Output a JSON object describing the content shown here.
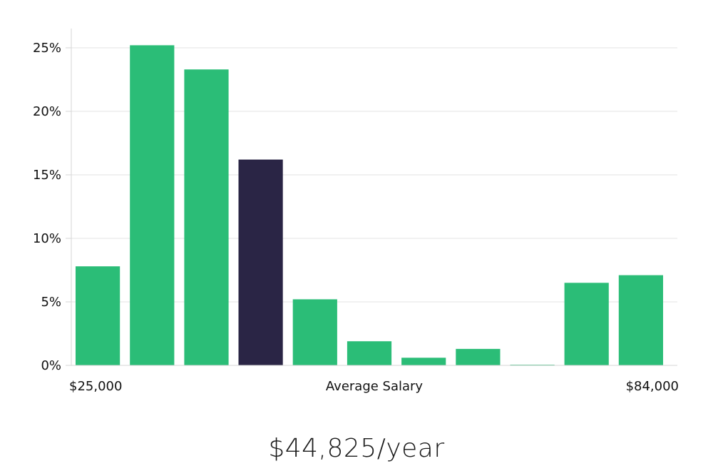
{
  "colors": {
    "bar": "#2bbd77",
    "highlight": "#2a2545",
    "grid": "#e3e3e3",
    "axis": "#d6d6d6",
    "text": "#111111"
  },
  "chart_data": {
    "type": "bar",
    "title": "",
    "xlabel": "Average Salary",
    "ylabel": "",
    "ylim": [
      0,
      26.5
    ],
    "y_ticks": [
      0,
      5,
      10,
      15,
      20,
      25
    ],
    "y_tick_labels": [
      "0%",
      "5%",
      "10%",
      "15%",
      "20%",
      "25%"
    ],
    "x_range_labels": {
      "min": "$25,000",
      "max": "$84,000"
    },
    "values": [
      7.8,
      25.2,
      23.3,
      16.2,
      5.2,
      1.9,
      0.6,
      1.3,
      0.05,
      6.5,
      7.1
    ],
    "highlight_index": 3,
    "grid": true
  },
  "average_salary": "$44,825/year"
}
